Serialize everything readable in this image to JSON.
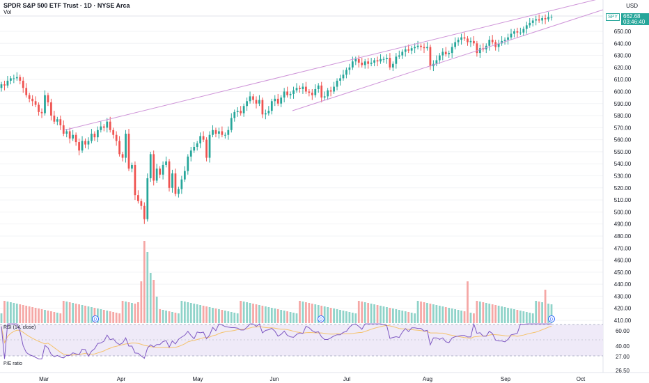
{
  "header": {
    "title": "SPDR S&P 500 ETF Trust · 1D · NYSE Arca",
    "volume_label": "Vol",
    "currency": "USD"
  },
  "price_badge": {
    "ticker": "SPY",
    "price": "662.68",
    "countdown": "03:46:40"
  },
  "panes": {
    "rsi_label": "RSI (14, close)",
    "pe_label": "P/E ratio"
  },
  "colors": {
    "up": "#26a69a",
    "down": "#ef5350",
    "volume_up": "#8fd3c9",
    "volume_down": "#f5a7a5",
    "trendline": "#ce93d8",
    "rsi_line": "#7e57c2",
    "rsi_ma": "#f5c26b",
    "rsi_band": "#efeaf8"
  },
  "chart_data": {
    "type": "candlestick",
    "x_axis_labels": [
      "Mar",
      "Apr",
      "May",
      "Jun",
      "Jul",
      "Aug",
      "Sep",
      "Oct"
    ],
    "price_axis": {
      "ticks": [
        410,
        420,
        430,
        440,
        450,
        460,
        470,
        480,
        490,
        500,
        510,
        520,
        530,
        540,
        550,
        560,
        570,
        580,
        590,
        600,
        610,
        620,
        630,
        640,
        650
      ],
      "range": [
        406,
        668
      ]
    },
    "rsi_axis": {
      "ticks": [
        "60.00",
        "40.00",
        "27.00"
      ]
    },
    "pe_axis": {
      "ticks": [
        "26.50"
      ]
    },
    "candles_close": [
      606,
      605,
      609,
      611,
      611,
      612,
      609,
      603,
      597,
      594,
      592,
      589,
      583,
      582,
      597,
      591,
      580,
      575,
      577,
      572,
      565,
      567,
      561,
      564,
      558,
      551,
      559,
      556,
      559,
      565,
      562,
      568,
      571,
      570,
      575,
      568,
      564,
      559,
      548,
      545,
      565,
      536,
      539,
      514,
      509,
      505,
      494,
      528,
      548,
      526,
      536,
      531,
      539,
      542,
      520,
      532,
      515,
      519,
      527,
      534,
      546,
      551,
      554,
      557,
      563,
      560,
      545,
      564,
      568,
      565,
      567,
      564,
      564,
      568,
      578,
      583,
      584,
      582,
      588,
      592,
      596,
      593,
      590,
      593,
      581,
      582,
      584,
      592,
      594,
      590,
      595,
      600,
      597,
      598,
      601,
      603,
      602,
      604,
      600,
      599,
      597,
      602,
      605,
      595,
      596,
      601,
      600,
      604,
      609,
      611,
      614,
      618,
      620,
      625,
      627,
      624,
      622,
      625,
      623,
      624,
      626,
      625,
      627,
      627,
      628,
      620,
      623,
      629,
      630,
      633,
      635,
      634,
      636,
      637,
      638,
      637,
      636,
      637,
      621,
      623,
      626,
      630,
      633,
      631,
      632,
      637,
      641,
      643,
      645,
      644,
      641,
      642,
      640,
      632,
      636,
      635,
      638,
      643,
      641,
      637,
      640,
      642,
      643,
      645,
      648,
      650,
      649,
      649,
      652,
      655,
      657,
      659,
      660,
      659,
      661,
      660,
      662,
      662
    ]
  }
}
